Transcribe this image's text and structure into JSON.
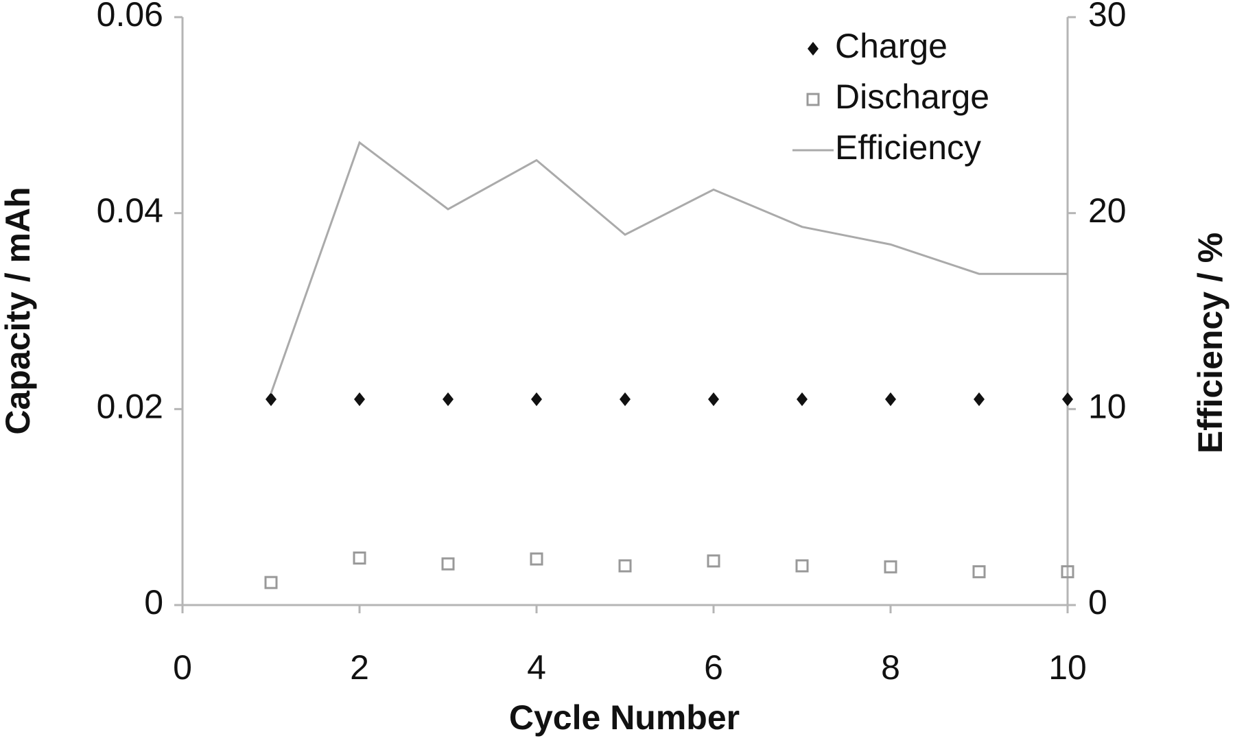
{
  "chart_data": {
    "type": "scatter",
    "x_label": "Cycle Number",
    "y_label": "Capacity / mAh",
    "y2_label": "Efficiency / %",
    "x": [
      1,
      2,
      3,
      4,
      5,
      6,
      7,
      8,
      9,
      10
    ],
    "xlim": [
      0,
      10
    ],
    "xticks": [
      0,
      2,
      4,
      6,
      8,
      10
    ],
    "ylim": [
      0,
      0.06
    ],
    "yticks": [
      0,
      0.02,
      0.04,
      0.06
    ],
    "y2lim": [
      0,
      30
    ],
    "y2ticks": [
      0,
      10,
      20,
      30
    ],
    "legend": "upper right",
    "series": [
      {
        "name": "Charge",
        "color": "#111111",
        "marker": "diamond",
        "values": [
          0.021,
          0.021,
          0.021,
          0.021,
          0.021,
          0.021,
          0.021,
          0.021,
          0.021,
          0.021
        ]
      },
      {
        "name": "Discharge",
        "color": "#999999",
        "marker": "square",
        "values": [
          0.0023,
          0.0048,
          0.0042,
          0.0047,
          0.004,
          0.0045,
          0.004,
          0.0039,
          0.0034,
          0.0034
        ]
      },
      {
        "name": "Efficiency",
        "color": "#aaaaaa",
        "marker": "line",
        "axis": "y2",
        "values": [
          10.8,
          23.6,
          20.2,
          22.7,
          18.9,
          21.2,
          19.3,
          18.4,
          16.9,
          16.9
        ]
      }
    ]
  }
}
